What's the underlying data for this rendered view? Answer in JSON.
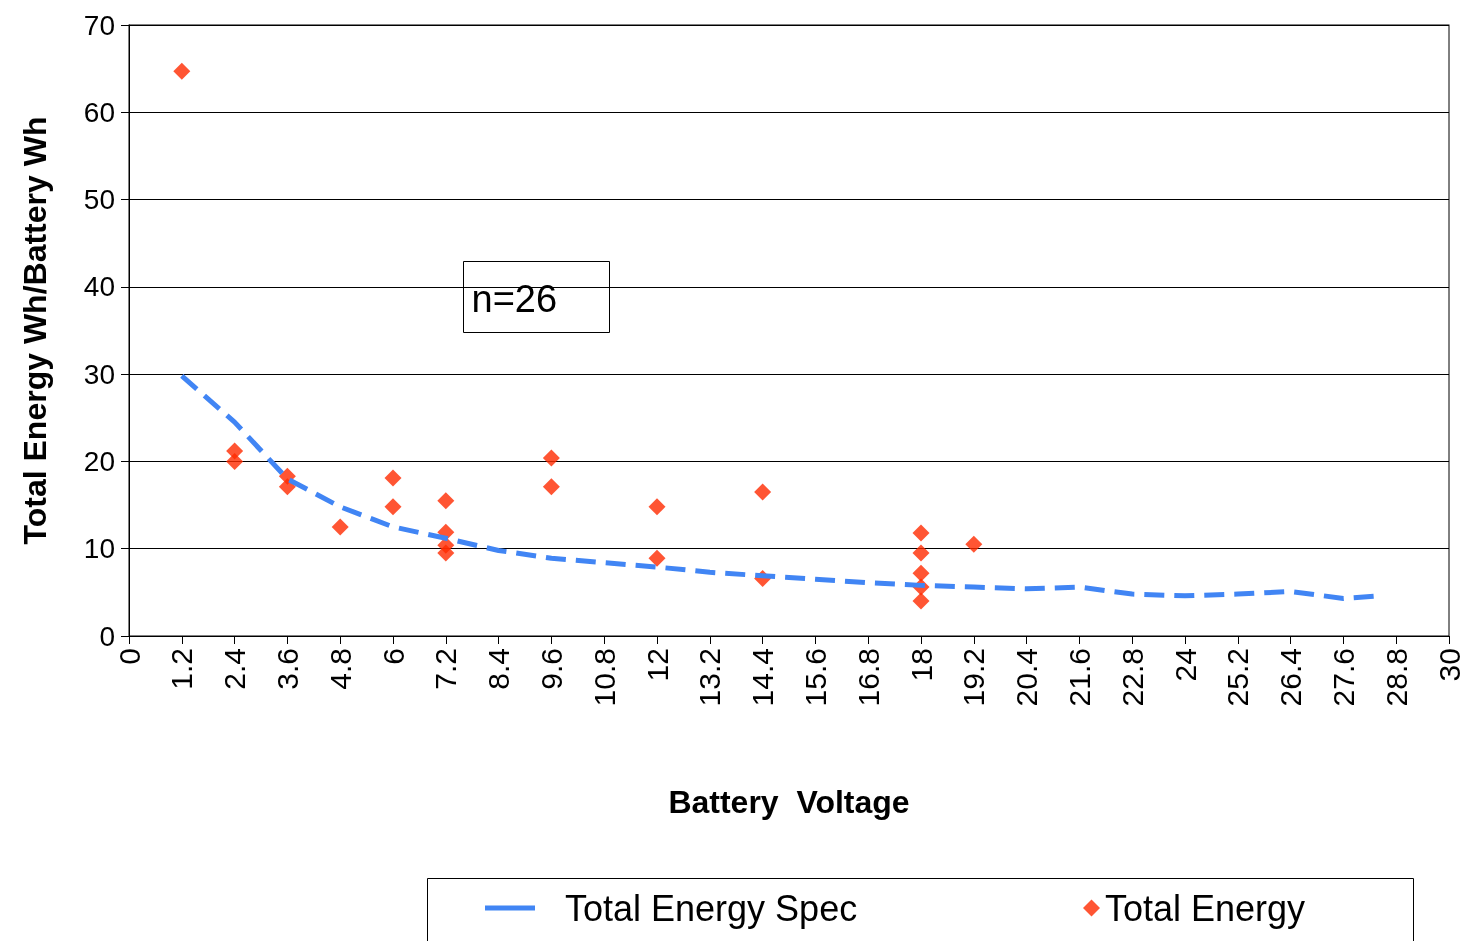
{
  "chart_data": {
    "type": "scatter",
    "xlabel": "Battery  Voltage",
    "ylabel": "Total Energy Wh/Battery Wh",
    "annotations": [
      "n=26"
    ],
    "xlim": [
      0,
      30
    ],
    "xticks": [
      0,
      1.2,
      2.4,
      3.6,
      4.8,
      6,
      7.2,
      8.4,
      9.6,
      10.8,
      12,
      13.2,
      14.4,
      15.6,
      16.8,
      18,
      19.2,
      20.4,
      21.6,
      22.8,
      24,
      25.2,
      26.4,
      27.6,
      28.8,
      30
    ],
    "ylim": [
      0,
      70
    ],
    "yticks": [
      0,
      10,
      20,
      30,
      40,
      50,
      60,
      70
    ],
    "grid": "y",
    "legend": "bottom",
    "series": [
      {
        "name": "Total Energy Spec",
        "type": "line",
        "line_style": "dashed",
        "marker": "none",
        "color": "#4185f4",
        "x": [
          1.2,
          2.4,
          3.6,
          4.8,
          6,
          7.2,
          8.4,
          9.6,
          10.8,
          12,
          13.2,
          14.4,
          15.6,
          16.8,
          18,
          19.2,
          20.4,
          21.6,
          22.8,
          24,
          25.2,
          26.4,
          27.6,
          28.4
        ],
        "values": [
          29.8,
          24.5,
          18,
          14.8,
          12.5,
          11.2,
          9.8,
          8.9,
          8.4,
          7.9,
          7.3,
          6.9,
          6.5,
          6.1,
          5.8,
          5.6,
          5.4,
          5.6,
          4.8,
          4.6,
          4.8,
          5.1,
          4.3,
          4.6
        ]
      },
      {
        "name": "Total Energy",
        "marker": "diamond",
        "color": "#ff2a00",
        "x": [
          1.2,
          2.4,
          2.4,
          3.6,
          3.6,
          4.8,
          6,
          6,
          7.2,
          7.2,
          7.2,
          7.2,
          9.6,
          9.6,
          12,
          12,
          14.4,
          14.4,
          18,
          18,
          18,
          18,
          18,
          19.2
        ],
        "values": [
          64.7,
          21.2,
          20,
          18.3,
          17.1,
          12.5,
          18.1,
          14.8,
          15.5,
          11.9,
          10.4,
          9.5,
          20.4,
          17.1,
          14.8,
          8.9,
          16.5,
          6.6,
          11.8,
          9.5,
          7.2,
          5.6,
          4,
          10.5
        ]
      }
    ]
  }
}
